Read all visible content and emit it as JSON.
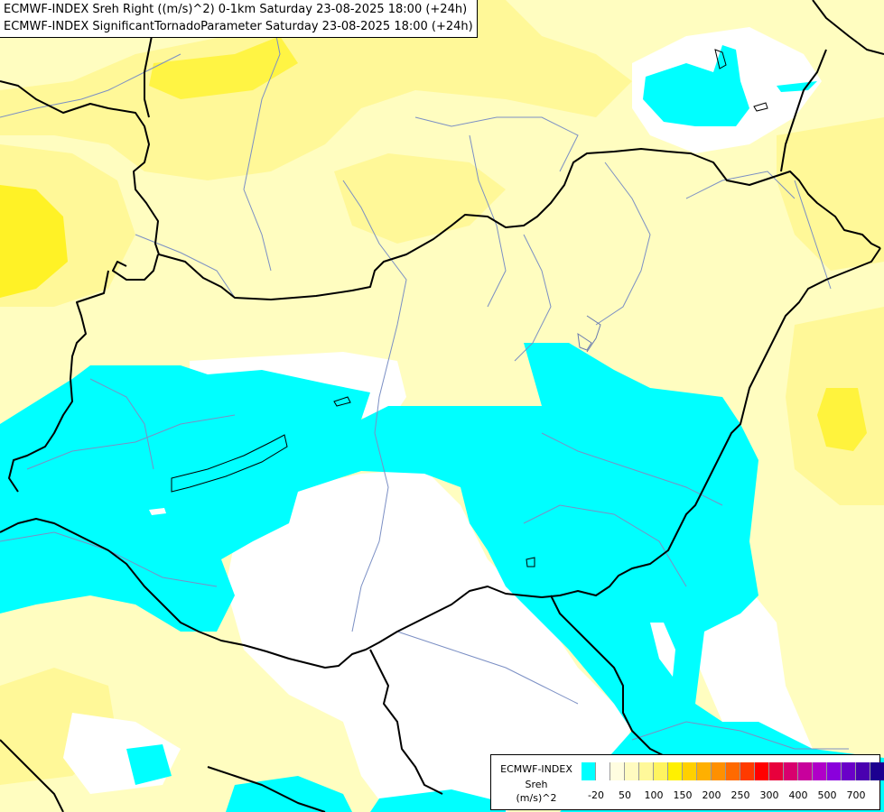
{
  "header": {
    "line1": "ECMWF-INDEX Sreh Right ((m/s)^2) 0-1km Saturday 23-08-2025 18:00 (+24h)",
    "line2": "ECMWF-INDEX SignificantTornadoParameter Saturday 23-08-2025 18:00 (+24h)"
  },
  "legend": {
    "title": "ECMWF-INDEX",
    "subtitle": "Sreh",
    "unit": "(m/s)^2",
    "colors": [
      "#00ffff",
      "#ffffff",
      "#fffde0",
      "#fffbc0",
      "#fff89a",
      "#fff460",
      "#fff000",
      "#ffd000",
      "#ffb000",
      "#ff9000",
      "#ff6a00",
      "#ff3a00",
      "#ff0000",
      "#e8003c",
      "#d8006e",
      "#c8009c",
      "#b000c8",
      "#8a00dc",
      "#6a00c8",
      "#4a00b0",
      "#1c0090"
    ],
    "ticks": [
      "-20",
      "50",
      "100",
      "150",
      "200",
      "250",
      "300",
      "400",
      "500",
      "700"
    ]
  },
  "map": {
    "palette": {
      "light_yellow": "#fffdc0",
      "yellow": "#fff898",
      "bright_yellow": "#fff000",
      "cyan": "#00ffff",
      "white": "#ffffff",
      "border": "#000000",
      "river": "#7b8fc4"
    }
  }
}
